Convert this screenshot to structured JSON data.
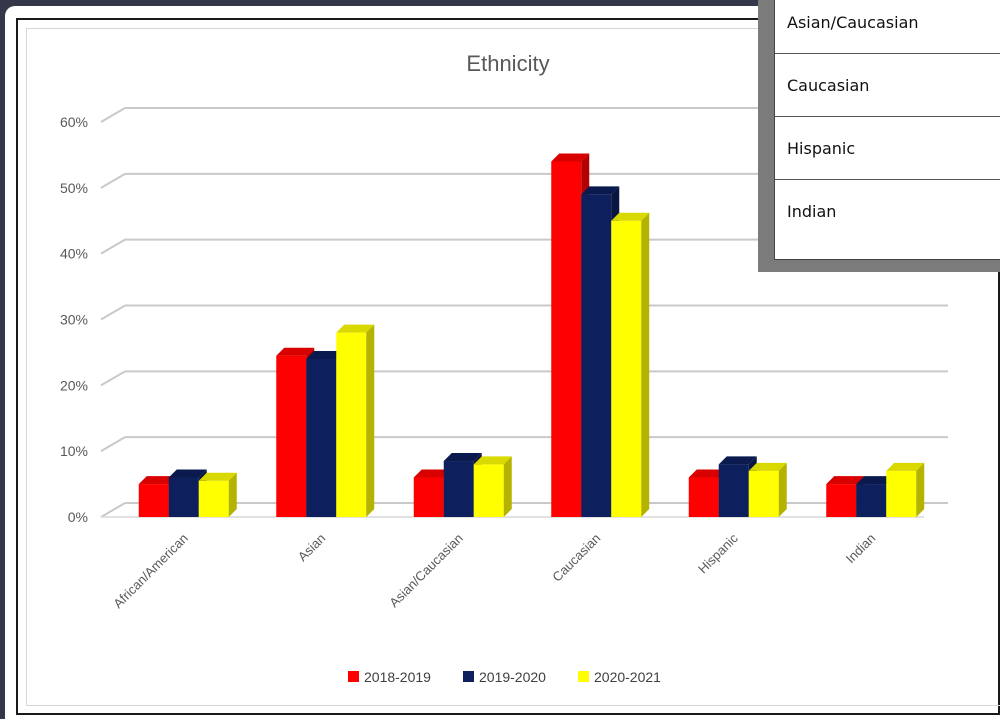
{
  "overlay_table": {
    "rows": [
      "Asian/Caucasian",
      "Caucasian",
      "Hispanic",
      "Indian"
    ]
  },
  "chart_data": {
    "type": "bar",
    "title": "Ethnicity",
    "categories": [
      "African/American",
      "Asian",
      "Asian/Caucasian",
      "Caucasian",
      "Hispanic",
      "Indian"
    ],
    "series": [
      {
        "name": "2018-2019",
        "color": "#ff0000",
        "values": [
          5,
          24.5,
          6,
          54,
          6,
          5
        ]
      },
      {
        "name": "2019-2020",
        "color": "#0d1f5c",
        "values": [
          6,
          24,
          8.5,
          49,
          8,
          5
        ]
      },
      {
        "name": "2020-2021",
        "color": "#ffff00",
        "values": [
          5.5,
          28,
          8,
          45,
          7,
          7
        ]
      }
    ],
    "ylim": [
      0,
      60
    ],
    "yticks": [
      "0%",
      "10%",
      "20%",
      "30%",
      "40%",
      "50%",
      "60%"
    ],
    "grid": true,
    "legend_position": "bottom"
  }
}
